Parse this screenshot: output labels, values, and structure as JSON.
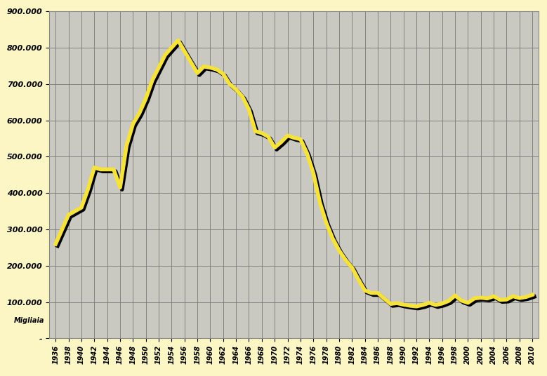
{
  "chart_data": {
    "type": "line",
    "y_label": "Migliaia",
    "x": [
      1936,
      1937,
      1938,
      1939,
      1940,
      1941,
      1942,
      1943,
      1944,
      1945,
      1946,
      1947,
      1948,
      1949,
      1950,
      1951,
      1952,
      1953,
      1954,
      1955,
      1956,
      1957,
      1958,
      1959,
      1960,
      1961,
      1962,
      1963,
      1964,
      1965,
      1966,
      1967,
      1968,
      1969,
      1970,
      1971,
      1972,
      1973,
      1974,
      1975,
      1976,
      1977,
      1978,
      1979,
      1980,
      1981,
      1982,
      1983,
      1984,
      1985,
      1986,
      1987,
      1988,
      1989,
      1990,
      1991,
      1992,
      1993,
      1994,
      1995,
      1996,
      1997,
      1998,
      1999,
      2000,
      2001,
      2002,
      2003,
      2004,
      2005,
      2006,
      2007,
      2008,
      2009,
      2010
    ],
    "values": [
      260000,
      300000,
      340000,
      350000,
      360000,
      410000,
      470000,
      465000,
      465000,
      465000,
      415000,
      530000,
      590000,
      620000,
      660000,
      710000,
      745000,
      780000,
      800000,
      820000,
      790000,
      760000,
      730000,
      748000,
      745000,
      740000,
      728000,
      700000,
      685000,
      665000,
      630000,
      570000,
      565000,
      555000,
      525000,
      540000,
      558000,
      552000,
      548000,
      510000,
      455000,
      375000,
      318000,
      275000,
      242000,
      216000,
      195000,
      162000,
      132000,
      125000,
      125000,
      110000,
      95000,
      97000,
      93000,
      90000,
      88000,
      92000,
      98000,
      92000,
      96000,
      103000,
      118000,
      104000,
      98000,
      110000,
      112000,
      110000,
      116000,
      106000,
      107000,
      116000,
      111000,
      114000,
      120000
    ],
    "color": "#f5e33b",
    "xlim": [
      1935,
      2011
    ],
    "xticks": [
      1936,
      1938,
      1940,
      1942,
      1944,
      1946,
      1948,
      1950,
      1952,
      1954,
      1956,
      1958,
      1960,
      1962,
      1964,
      1966,
      1968,
      1970,
      1972,
      1974,
      1976,
      1978,
      1980,
      1982,
      1984,
      1986,
      1988,
      1990,
      1992,
      1994,
      1996,
      1998,
      2000,
      2002,
      2004,
      2006,
      2008,
      2010
    ],
    "ylim": [
      0,
      900000
    ],
    "yticks": [
      {
        "value": 0,
        "label": "-"
      },
      {
        "value": 100000,
        "label": "100.000"
      },
      {
        "value": 200000,
        "label": "200.000"
      },
      {
        "value": 300000,
        "label": "300.000"
      },
      {
        "value": 400000,
        "label": "400.000"
      },
      {
        "value": 500000,
        "label": "500.000"
      },
      {
        "value": 600000,
        "label": "600.000"
      },
      {
        "value": 700000,
        "label": "700.000"
      },
      {
        "value": 800000,
        "label": "800.000"
      },
      {
        "value": 900000,
        "label": "900.000"
      }
    ],
    "grid": true
  }
}
